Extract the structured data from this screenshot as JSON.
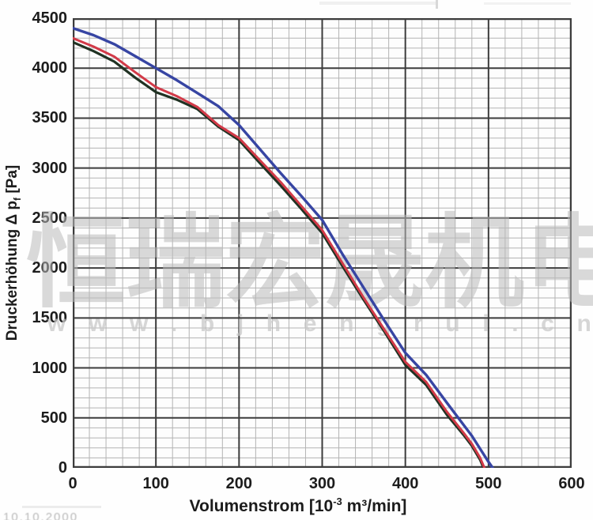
{
  "page": {
    "background": "#fefefe"
  },
  "watermark": {
    "cn_text": "恒瑞宏晟机电",
    "url_text": "www.bjhengrui.cn",
    "cn_color": "rgba(185,185,185,0.55)",
    "url_color": "rgba(200,200,200,0.75)"
  },
  "footer": {
    "fragment": "10.10.2000"
  },
  "colors": {
    "grid_minor": "#b3b3b3",
    "grid_major": "#3c3c3c",
    "border": "#3c3c3c",
    "label": "#1c1c1c",
    "plot_bg": "#fdfdfd"
  },
  "chart_data": {
    "type": "line",
    "title": "",
    "xlabel": {
      "pre": "Volumenstrom [10",
      "sup": "-3",
      "post": " m³/min]"
    },
    "ylabel": {
      "pre": "Druckerhöhung Δ p",
      "sub": "f",
      "post": " [Pa]"
    },
    "xlim": [
      0,
      600
    ],
    "ylim": [
      0,
      4500
    ],
    "x_ticks": [
      0,
      100,
      200,
      300,
      400,
      500,
      600
    ],
    "y_ticks": [
      4500,
      4000,
      3500,
      3000,
      2500,
      2000,
      1500,
      1000,
      500,
      0
    ],
    "x_minor_step": 20,
    "y_minor_step": 100,
    "x_major_step": 100,
    "y_major_step": 500,
    "grid": true,
    "legend_position": "none",
    "series": [
      {
        "name": "curve-dark-green",
        "color": "#203223",
        "width": 3.2,
        "points": [
          [
            0,
            4260
          ],
          [
            25,
            4170
          ],
          [
            50,
            4065
          ],
          [
            75,
            3905
          ],
          [
            100,
            3760
          ],
          [
            125,
            3685
          ],
          [
            150,
            3590
          ],
          [
            175,
            3415
          ],
          [
            200,
            3280
          ],
          [
            225,
            3050
          ],
          [
            250,
            2825
          ],
          [
            275,
            2590
          ],
          [
            300,
            2350
          ],
          [
            325,
            2010
          ],
          [
            350,
            1680
          ],
          [
            375,
            1360
          ],
          [
            400,
            1030
          ],
          [
            425,
            830
          ],
          [
            450,
            530
          ],
          [
            470,
            330
          ],
          [
            480,
            220
          ],
          [
            490,
            80
          ],
          [
            494,
            0
          ]
        ]
      },
      {
        "name": "curve-red",
        "color": "#d23a48",
        "width": 3.0,
        "points": [
          [
            0,
            4300
          ],
          [
            25,
            4215
          ],
          [
            50,
            4115
          ],
          [
            75,
            3960
          ],
          [
            100,
            3810
          ],
          [
            125,
            3720
          ],
          [
            150,
            3610
          ],
          [
            175,
            3430
          ],
          [
            200,
            3300
          ],
          [
            225,
            3080
          ],
          [
            250,
            2860
          ],
          [
            275,
            2620
          ],
          [
            300,
            2380
          ],
          [
            325,
            2040
          ],
          [
            350,
            1700
          ],
          [
            375,
            1380
          ],
          [
            400,
            1060
          ],
          [
            425,
            860
          ],
          [
            450,
            560
          ],
          [
            470,
            350
          ],
          [
            480,
            240
          ],
          [
            490,
            100
          ],
          [
            495,
            0
          ]
        ]
      },
      {
        "name": "curve-blue",
        "color": "#3745a3",
        "width": 3.4,
        "points": [
          [
            0,
            4400
          ],
          [
            25,
            4330
          ],
          [
            50,
            4240
          ],
          [
            75,
            4120
          ],
          [
            100,
            4000
          ],
          [
            125,
            3880
          ],
          [
            150,
            3750
          ],
          [
            175,
            3620
          ],
          [
            200,
            3430
          ],
          [
            225,
            3190
          ],
          [
            250,
            2950
          ],
          [
            275,
            2720
          ],
          [
            300,
            2480
          ],
          [
            325,
            2130
          ],
          [
            350,
            1800
          ],
          [
            375,
            1470
          ],
          [
            400,
            1150
          ],
          [
            425,
            930
          ],
          [
            450,
            650
          ],
          [
            470,
            430
          ],
          [
            480,
            320
          ],
          [
            490,
            190
          ],
          [
            500,
            60
          ],
          [
            505,
            0
          ]
        ]
      }
    ]
  }
}
